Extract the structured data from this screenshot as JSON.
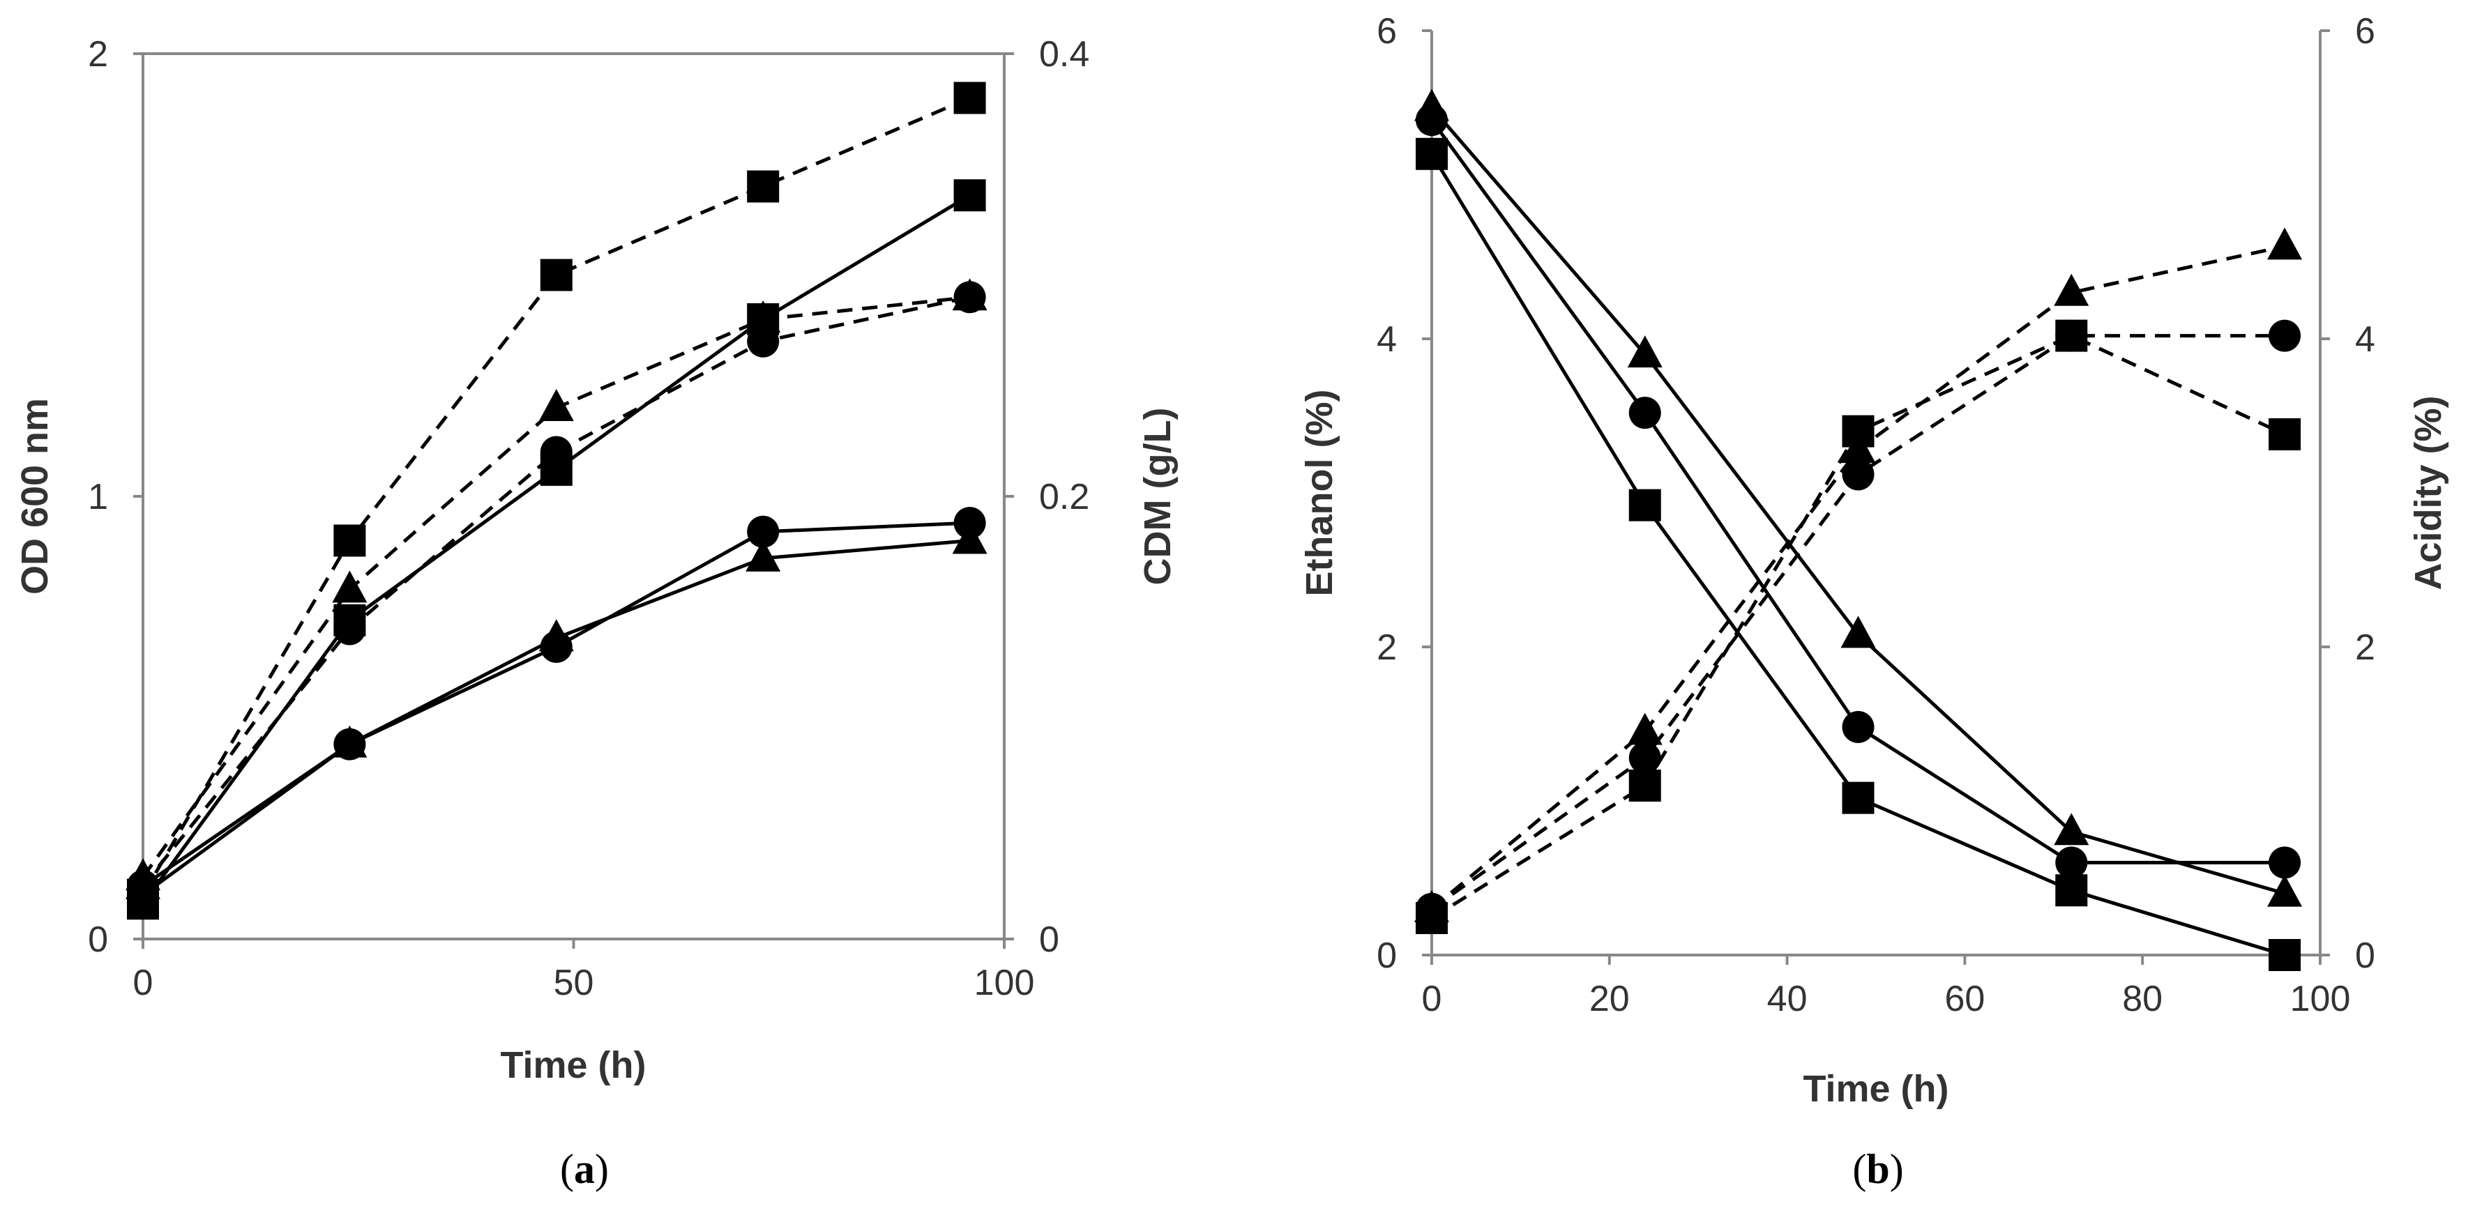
{
  "chart_data": [
    {
      "type": "line",
      "panel_label": {
        "open": "(",
        "letter": "a",
        "close": ")"
      },
      "xlabel": "Time (h)",
      "ylabel": "OD 600 nm",
      "y2label": "CDM (g/L)",
      "xlim": [
        0,
        100
      ],
      "ylim": [
        0,
        2
      ],
      "y2lim": [
        0,
        0.4
      ],
      "xticks": [
        "0",
        "50",
        "100"
      ],
      "yticks": [
        "0",
        "1",
        "2"
      ],
      "y2ticks": [
        "0",
        "0.2",
        "0.4"
      ],
      "series": [
        {
          "axis": "left",
          "marker": "square",
          "dash": "solid",
          "x": [
            0,
            24,
            48,
            72,
            96
          ],
          "values": [
            0.08,
            0.72,
            1.06,
            1.4,
            1.68
          ]
        },
        {
          "axis": "left",
          "marker": "circle",
          "dash": "solid",
          "x": [
            0,
            24,
            48,
            72,
            96
          ],
          "values": [
            0.1,
            0.44,
            0.66,
            0.92,
            0.94
          ]
        },
        {
          "axis": "left",
          "marker": "triangle",
          "dash": "solid",
          "x": [
            0,
            24,
            48,
            72,
            96
          ],
          "values": [
            0.12,
            0.44,
            0.68,
            0.86,
            0.9
          ]
        },
        {
          "axis": "right",
          "marker": "square",
          "dash": "dashed",
          "x": [
            0,
            24,
            48,
            72,
            96
          ],
          "values": [
            0.02,
            0.18,
            0.3,
            0.34,
            0.38
          ]
        },
        {
          "axis": "right",
          "marker": "circle",
          "dash": "dashed",
          "x": [
            0,
            24,
            48,
            72,
            96
          ],
          "values": [
            0.024,
            0.14,
            0.22,
            0.27,
            0.29
          ]
        },
        {
          "axis": "right",
          "marker": "triangle",
          "dash": "dashed",
          "x": [
            0,
            24,
            48,
            72,
            96
          ],
          "values": [
            0.028,
            0.158,
            0.24,
            0.28,
            0.29
          ]
        }
      ]
    },
    {
      "type": "line",
      "panel_label": {
        "open": "(",
        "letter": "b",
        "close": ")"
      },
      "xlabel": "Time (h)",
      "ylabel": "Ethanol (%)",
      "y2label": "Acidity (%)",
      "xlim": [
        0,
        100
      ],
      "ylim": [
        0,
        6
      ],
      "y2lim": [
        0,
        6
      ],
      "xticks": [
        "0",
        "20",
        "40",
        "60",
        "80",
        "100"
      ],
      "yticks": [
        "0",
        "2",
        "4",
        "6"
      ],
      "y2ticks": [
        "0",
        "2",
        "4",
        "6"
      ],
      "series": [
        {
          "axis": "left",
          "marker": "square",
          "dash": "solid",
          "x": [
            0,
            24,
            48,
            72,
            96
          ],
          "values": [
            5.2,
            2.92,
            1.02,
            0.42,
            0.0
          ]
        },
        {
          "axis": "left",
          "marker": "circle",
          "dash": "solid",
          "x": [
            0,
            24,
            48,
            72,
            96
          ],
          "values": [
            5.42,
            3.52,
            1.48,
            0.6,
            0.6
          ]
        },
        {
          "axis": "left",
          "marker": "triangle",
          "dash": "solid",
          "x": [
            0,
            24,
            48,
            72,
            96
          ],
          "values": [
            5.5,
            3.9,
            2.08,
            0.8,
            0.4
          ]
        },
        {
          "axis": "right",
          "marker": "square",
          "dash": "dashed",
          "x": [
            0,
            24,
            48,
            72,
            96
          ],
          "values": [
            0.24,
            1.1,
            3.4,
            4.02,
            3.38
          ]
        },
        {
          "axis": "right",
          "marker": "circle",
          "dash": "dashed",
          "x": [
            0,
            24,
            48,
            72,
            96
          ],
          "values": [
            0.3,
            1.28,
            3.12,
            4.02,
            4.02
          ]
        },
        {
          "axis": "right",
          "marker": "triangle",
          "dash": "dashed",
          "x": [
            0,
            24,
            48,
            72,
            96
          ],
          "values": [
            0.3,
            1.45,
            3.28,
            4.3,
            4.6
          ]
        }
      ]
    }
  ]
}
